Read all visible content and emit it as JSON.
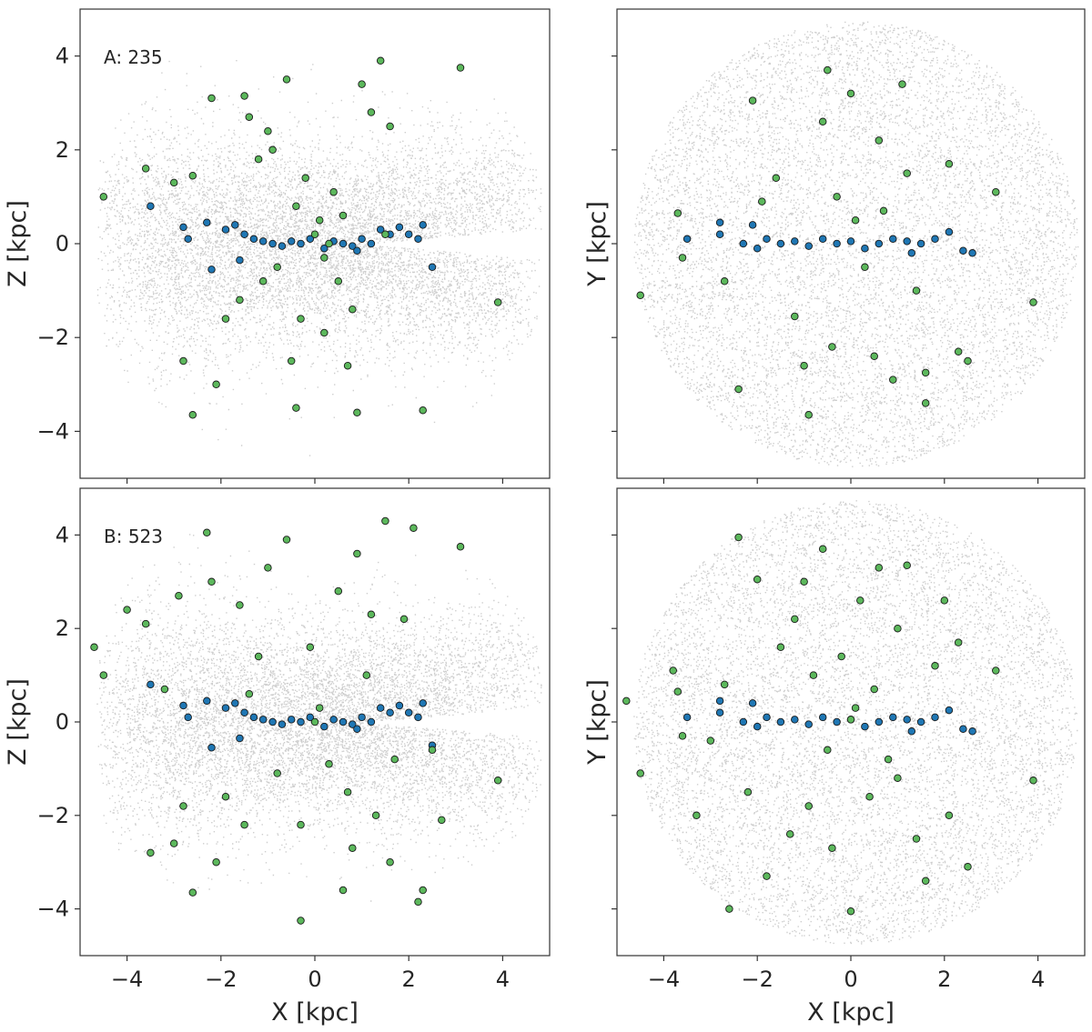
{
  "colors": {
    "background_stars": "#a6a6a6",
    "blue_points": "#1f77b4",
    "green_points": "#5cb85c",
    "point_edge": "#1a1a1a"
  },
  "chart_data": [
    {
      "type": "scatter",
      "panel": "A-XZ",
      "label": "A: 235",
      "xlabel": "",
      "ylabel": "Z [kpc]",
      "xlim": [
        -5,
        5
      ],
      "ylim": [
        -5,
        5
      ],
      "xticks": [
        "−4",
        "−2",
        "0",
        "2",
        "4"
      ],
      "yticks": [
        "−4",
        "−2",
        "0",
        "2",
        "4"
      ],
      "grid": false,
      "series": [
        {
          "role": "background",
          "shape": "flared-disk"
        },
        {
          "role": "blue",
          "x": [
            -2.8,
            -2.7,
            -2.3,
            -2.2,
            -1.9,
            -1.7,
            -1.5,
            -1.3,
            -1.1,
            -0.9,
            -0.7,
            -0.5,
            -0.3,
            -0.1,
            0.2,
            0.4,
            0.6,
            0.8,
            1.0,
            1.2,
            1.4,
            1.6,
            1.8,
            2.0,
            2.2,
            2.5,
            -3.5,
            -1.6,
            0.9,
            2.3
          ],
          "y": [
            0.35,
            0.1,
            0.45,
            -0.55,
            0.3,
            0.4,
            0.2,
            0.1,
            0.05,
            0.0,
            -0.05,
            0.05,
            0.0,
            0.1,
            -0.1,
            0.05,
            0.0,
            -0.05,
            0.1,
            0.0,
            0.3,
            0.2,
            0.35,
            0.2,
            0.1,
            -0.5,
            0.8,
            -0.35,
            -0.15,
            0.4
          ]
        },
        {
          "role": "green",
          "x": [
            -4.5,
            -3.6,
            -3.0,
            -2.8,
            -2.6,
            -2.2,
            -2.1,
            -1.9,
            -1.6,
            -1.5,
            -1.4,
            -1.2,
            -1.0,
            -0.8,
            -0.6,
            -0.5,
            -0.4,
            -0.3,
            -0.2,
            0.0,
            0.1,
            0.2,
            0.3,
            0.4,
            0.5,
            0.6,
            0.8,
            1.0,
            1.2,
            1.4,
            1.6,
            2.3,
            3.1,
            3.9,
            -0.9,
            0.9,
            1.5,
            -1.1,
            0.7,
            -0.4,
            0.2,
            -2.6
          ],
          "y": [
            1.0,
            1.6,
            1.3,
            -2.5,
            -3.65,
            3.1,
            -3.0,
            -1.6,
            -1.2,
            3.15,
            2.7,
            1.8,
            2.4,
            -0.5,
            3.5,
            -2.5,
            0.8,
            -1.6,
            1.4,
            0.2,
            0.5,
            -0.3,
            0.0,
            1.1,
            -0.8,
            0.6,
            -1.4,
            3.4,
            2.8,
            3.9,
            2.5,
            -3.55,
            3.75,
            -1.25,
            2.0,
            -3.6,
            0.2,
            -0.8,
            -2.6,
            -3.5,
            -1.9,
            1.45
          ]
        }
      ]
    },
    {
      "type": "scatter",
      "panel": "A-XY",
      "xlabel": "",
      "ylabel": "Y [kpc]",
      "xlim": [
        -5,
        5
      ],
      "ylim": [
        -5,
        5
      ],
      "series": [
        {
          "role": "background",
          "shape": "flat-disk"
        },
        {
          "role": "blue",
          "x": [
            -3.5,
            -2.8,
            -2.8,
            -2.3,
            -2.0,
            -1.8,
            -1.5,
            -1.2,
            -0.9,
            -0.6,
            -0.3,
            0.0,
            0.3,
            0.6,
            0.9,
            1.2,
            1.5,
            1.8,
            2.1,
            2.4,
            2.6,
            -2.1,
            1.3
          ],
          "y": [
            0.1,
            0.45,
            0.2,
            0.0,
            -0.1,
            0.1,
            0.0,
            0.05,
            -0.05,
            0.1,
            0.0,
            0.05,
            -0.1,
            0.0,
            0.1,
            0.05,
            0.0,
            0.1,
            0.25,
            -0.15,
            -0.2,
            0.4,
            -0.2
          ]
        },
        {
          "role": "green",
          "x": [
            -4.5,
            -3.7,
            -3.6,
            -2.4,
            -2.1,
            -1.6,
            -1.2,
            -1.0,
            -0.9,
            -0.6,
            -0.5,
            -0.3,
            0.0,
            0.1,
            0.3,
            0.5,
            0.7,
            0.9,
            1.1,
            1.2,
            1.4,
            1.6,
            1.6,
            2.1,
            2.3,
            2.5,
            3.1,
            3.9,
            -0.4,
            0.6,
            -1.9,
            -2.7
          ],
          "y": [
            -1.1,
            0.65,
            -0.3,
            -3.1,
            3.05,
            1.4,
            -1.55,
            -2.6,
            -3.65,
            2.6,
            3.7,
            1.0,
            3.2,
            0.5,
            -0.5,
            -2.4,
            0.7,
            -2.9,
            3.4,
            1.5,
            -1.0,
            -2.75,
            -3.4,
            1.7,
            -2.3,
            -2.5,
            1.1,
            -1.25,
            -2.2,
            2.2,
            0.9,
            -0.8
          ]
        }
      ]
    },
    {
      "type": "scatter",
      "panel": "B-XZ",
      "label": "B: 523",
      "xlabel": "X [kpc]",
      "ylabel": "Z [kpc]",
      "xlim": [
        -5,
        5
      ],
      "ylim": [
        -5,
        5
      ],
      "series": [
        {
          "role": "background",
          "shape": "flared-disk"
        },
        {
          "role": "blue",
          "x": [
            -2.8,
            -2.7,
            -2.3,
            -2.2,
            -1.9,
            -1.7,
            -1.5,
            -1.3,
            -1.1,
            -0.9,
            -0.7,
            -0.5,
            -0.3,
            -0.1,
            0.2,
            0.4,
            0.6,
            0.8,
            1.0,
            1.2,
            1.4,
            1.6,
            1.8,
            2.0,
            2.2,
            2.5,
            -3.5,
            -1.6,
            0.9,
            2.3
          ],
          "y": [
            0.35,
            0.1,
            0.45,
            -0.55,
            0.3,
            0.4,
            0.2,
            0.1,
            0.05,
            0.0,
            -0.05,
            0.05,
            0.0,
            0.1,
            -0.1,
            0.05,
            0.0,
            -0.05,
            0.1,
            0.0,
            0.3,
            0.2,
            0.35,
            0.2,
            0.1,
            -0.5,
            0.8,
            -0.35,
            -0.15,
            0.4
          ]
        },
        {
          "role": "green",
          "x": [
            -4.7,
            -4.5,
            -4.0,
            -3.5,
            -3.6,
            -3.0,
            -2.8,
            -2.6,
            -2.3,
            -2.2,
            -2.1,
            -1.9,
            -1.6,
            -1.5,
            -1.2,
            -1.0,
            -0.8,
            -0.6,
            -0.3,
            -0.1,
            0.1,
            0.3,
            0.5,
            0.7,
            0.9,
            1.1,
            1.3,
            1.5,
            1.7,
            1.9,
            2.1,
            2.3,
            2.5,
            2.7,
            3.1,
            3.9,
            -0.3,
            0.6,
            1.2,
            -1.4,
            0.8,
            1.6,
            2.2,
            -2.9,
            -3.2,
            0.0
          ],
          "y": [
            1.6,
            1.0,
            2.4,
            -2.8,
            2.1,
            -2.6,
            -1.8,
            -3.65,
            4.05,
            3.0,
            -3.0,
            -1.6,
            2.5,
            -2.2,
            1.4,
            3.3,
            -1.1,
            3.9,
            -2.2,
            1.6,
            0.3,
            -0.9,
            2.8,
            -1.5,
            3.6,
            1.0,
            -2.0,
            4.3,
            -0.8,
            2.2,
            4.15,
            -3.6,
            -0.6,
            -2.1,
            3.75,
            -1.25,
            -4.25,
            -3.6,
            2.3,
            0.6,
            -2.7,
            -3.0,
            -3.85,
            2.7,
            0.7,
            0.0
          ]
        }
      ]
    },
    {
      "type": "scatter",
      "panel": "B-XY",
      "xlabel": "X [kpc]",
      "ylabel": "Y [kpc]",
      "xlim": [
        -5,
        5
      ],
      "ylim": [
        -5,
        5
      ],
      "series": [
        {
          "role": "background",
          "shape": "flat-disk"
        },
        {
          "role": "blue",
          "x": [
            -3.5,
            -2.8,
            -2.8,
            -2.3,
            -2.0,
            -1.8,
            -1.5,
            -1.2,
            -0.9,
            -0.6,
            -0.3,
            0.0,
            0.3,
            0.6,
            0.9,
            1.2,
            1.5,
            1.8,
            2.1,
            2.4,
            2.6,
            -2.1,
            1.3
          ],
          "y": [
            0.1,
            0.45,
            0.2,
            0.0,
            -0.1,
            0.1,
            0.0,
            0.05,
            -0.05,
            0.1,
            0.0,
            0.05,
            -0.1,
            0.0,
            0.1,
            0.05,
            0.0,
            0.1,
            0.25,
            -0.15,
            -0.2,
            0.4,
            -0.2
          ]
        },
        {
          "role": "green",
          "x": [
            -4.8,
            -4.5,
            -3.8,
            -3.7,
            -3.6,
            -3.3,
            -3.0,
            -2.6,
            -2.4,
            -2.2,
            -2.0,
            -1.8,
            -1.5,
            -1.3,
            -1.0,
            -0.8,
            -0.6,
            -0.4,
            -0.2,
            0.0,
            0.2,
            0.4,
            0.6,
            0.8,
            1.0,
            1.2,
            1.4,
            1.6,
            1.8,
            2.1,
            2.3,
            2.5,
            3.1,
            3.9,
            -0.5,
            0.5,
            1.0,
            -1.2,
            0.1,
            -0.9,
            2.0,
            -2.7,
            0.0
          ],
          "y": [
            0.45,
            -1.1,
            1.1,
            0.65,
            -0.3,
            -2.0,
            -0.4,
            -4.0,
            3.95,
            -1.5,
            3.05,
            -3.3,
            1.6,
            -2.4,
            3.0,
            1.0,
            3.7,
            -2.7,
            1.4,
            -4.05,
            2.6,
            -1.6,
            3.3,
            -0.8,
            2.0,
            3.35,
            -2.5,
            -3.4,
            1.2,
            -2.0,
            1.7,
            -3.1,
            1.1,
            -1.25,
            -0.6,
            0.7,
            -1.2,
            2.2,
            0.3,
            -1.8,
            2.6,
            0.8,
            0.05
          ]
        }
      ]
    }
  ]
}
